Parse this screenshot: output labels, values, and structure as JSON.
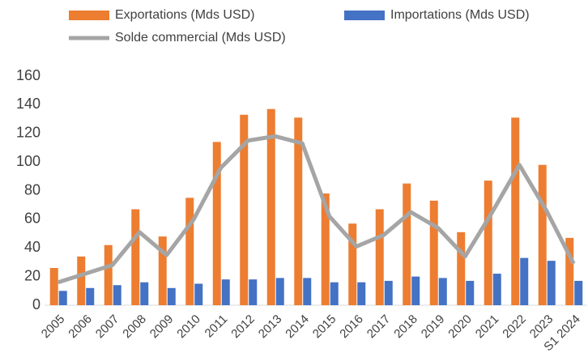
{
  "chart_data": {
    "type": "bar",
    "categories": [
      "2005",
      "2006",
      "2007",
      "2008",
      "2009",
      "2010",
      "2011",
      "2012",
      "2013",
      "2014",
      "2015",
      "2016",
      "2017",
      "2018",
      "2019",
      "2020",
      "2021",
      "2022",
      "2023",
      "S1 2024"
    ],
    "series": [
      {
        "name": "Exportations (Mds USD)",
        "type": "bar",
        "color": "#ed7d31",
        "values": [
          26,
          34,
          42,
          67,
          48,
          75,
          114,
          133,
          137,
          131,
          78,
          57,
          67,
          85,
          73,
          51,
          87,
          131,
          98,
          47
        ]
      },
      {
        "name": "Importations (Mds USD)",
        "type": "bar",
        "color": "#4472c4",
        "values": [
          10,
          12,
          14,
          16,
          12,
          15,
          18,
          18,
          19,
          19,
          16,
          16,
          17,
          20,
          19,
          17,
          22,
          33,
          31,
          17
        ]
      },
      {
        "name": "Solde commercial (Mds USD)",
        "type": "line",
        "color": "#a5a5a5",
        "values": [
          16,
          22,
          28,
          51,
          35,
          60,
          96,
          115,
          118,
          113,
          62,
          41,
          49,
          65,
          54,
          34,
          65,
          98,
          66,
          29
        ]
      }
    ],
    "ylim": [
      0,
      160
    ],
    "yticks": [
      0,
      20,
      40,
      60,
      80,
      100,
      120,
      140,
      160
    ],
    "grid": false
  }
}
